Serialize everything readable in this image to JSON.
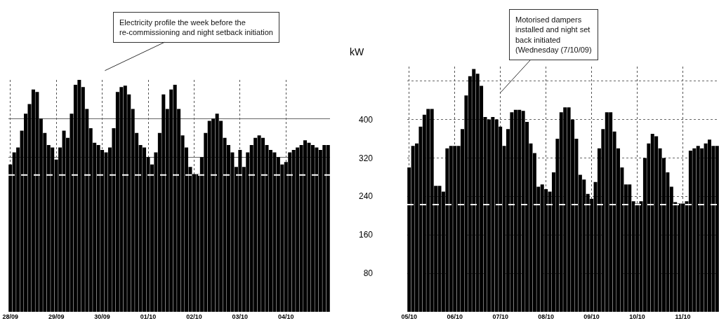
{
  "chart_data": [
    {
      "type": "bar",
      "annotations": [
        "Electricity profile the week before the re-commissioning and night setback initiation"
      ],
      "categories": [
        "28/09",
        null,
        null,
        null,
        null,
        null,
        null,
        null,
        null,
        null,
        null,
        null,
        "29/09",
        null,
        null,
        null,
        null,
        null,
        null,
        null,
        null,
        null,
        null,
        null,
        "30/09",
        null,
        null,
        null,
        null,
        null,
        null,
        null,
        null,
        null,
        null,
        null,
        "01/10",
        null,
        null,
        null,
        null,
        null,
        null,
        null,
        null,
        null,
        null,
        null,
        "02/10",
        null,
        null,
        null,
        null,
        null,
        null,
        null,
        null,
        null,
        null,
        null,
        "03/10",
        null,
        null,
        null,
        null,
        null,
        null,
        null,
        null,
        null,
        null,
        null,
        "04/10",
        null,
        null,
        null,
        null,
        null,
        null,
        null,
        null,
        null,
        null,
        null
      ],
      "series": [
        {
          "color": "#000000",
          "values": [
            305,
            330,
            340,
            375,
            410,
            430,
            460,
            455,
            400,
            370,
            345,
            340,
            315,
            340,
            375,
            360,
            410,
            470,
            480,
            465,
            420,
            380,
            350,
            345,
            335,
            330,
            340,
            380,
            455,
            465,
            468,
            450,
            420,
            370,
            345,
            340,
            320,
            305,
            330,
            370,
            450,
            420,
            460,
            470,
            420,
            365,
            340,
            300,
            285,
            285,
            320,
            370,
            395,
            400,
            410,
            395,
            360,
            345,
            330,
            300,
            335,
            300,
            330,
            345,
            360,
            365,
            360,
            345,
            335,
            330,
            320,
            305,
            310,
            330,
            335,
            340,
            345,
            355,
            350,
            345,
            340,
            335,
            345,
            345
          ]
        }
      ],
      "ylim": [
        0,
        480
      ],
      "yticks": [
        320,
        400
      ],
      "tick_labels": "x",
      "grid": true,
      "ref_lines": [
        {
          "axis": "y",
          "value": 283,
          "color": "#ffffff",
          "line_style": "dashed"
        }
      ]
    },
    {
      "type": "bar",
      "ylabel": "kW",
      "annotations": [
        "Motorised dampers installed and night set back initiated (Wednesday (7/10/09)"
      ],
      "categories": [
        "05/10",
        null,
        null,
        null,
        null,
        null,
        null,
        null,
        null,
        null,
        null,
        null,
        "06/10",
        null,
        null,
        null,
        null,
        null,
        null,
        null,
        null,
        null,
        null,
        null,
        "07/10",
        null,
        null,
        null,
        null,
        null,
        null,
        null,
        null,
        null,
        null,
        null,
        "08/10",
        null,
        null,
        null,
        null,
        null,
        null,
        null,
        null,
        null,
        null,
        null,
        "09/10",
        null,
        null,
        null,
        null,
        null,
        null,
        null,
        null,
        null,
        null,
        null,
        "10/10",
        null,
        null,
        null,
        null,
        null,
        null,
        null,
        null,
        null,
        null,
        null,
        "11/10",
        null,
        null,
        null,
        null,
        null,
        null,
        null,
        null,
        null
      ],
      "series": [
        {
          "color": "#000000",
          "values": [
            300,
            345,
            350,
            385,
            410,
            422,
            422,
            262,
            262,
            250,
            340,
            345,
            345,
            345,
            380,
            450,
            490,
            505,
            495,
            470,
            405,
            400,
            405,
            400,
            385,
            345,
            380,
            415,
            420,
            420,
            418,
            395,
            350,
            330,
            260,
            265,
            255,
            250,
            290,
            360,
            415,
            425,
            425,
            400,
            360,
            285,
            275,
            245,
            235,
            270,
            340,
            380,
            415,
            415,
            375,
            340,
            300,
            265,
            265,
            230,
            225,
            230,
            320,
            350,
            370,
            365,
            340,
            320,
            290,
            260,
            228,
            225,
            225,
            230,
            335,
            340,
            345,
            340,
            350,
            358,
            345,
            345
          ]
        }
      ],
      "ylim": [
        0,
        510
      ],
      "yticks": [
        80,
        160,
        240,
        320,
        400,
        {
          "value": 480,
          "label": null
        }
      ],
      "grid": true,
      "ref_lines": [
        {
          "axis": "y",
          "value": 223,
          "color": "#ffffff",
          "line_style": "dashed"
        }
      ]
    }
  ]
}
